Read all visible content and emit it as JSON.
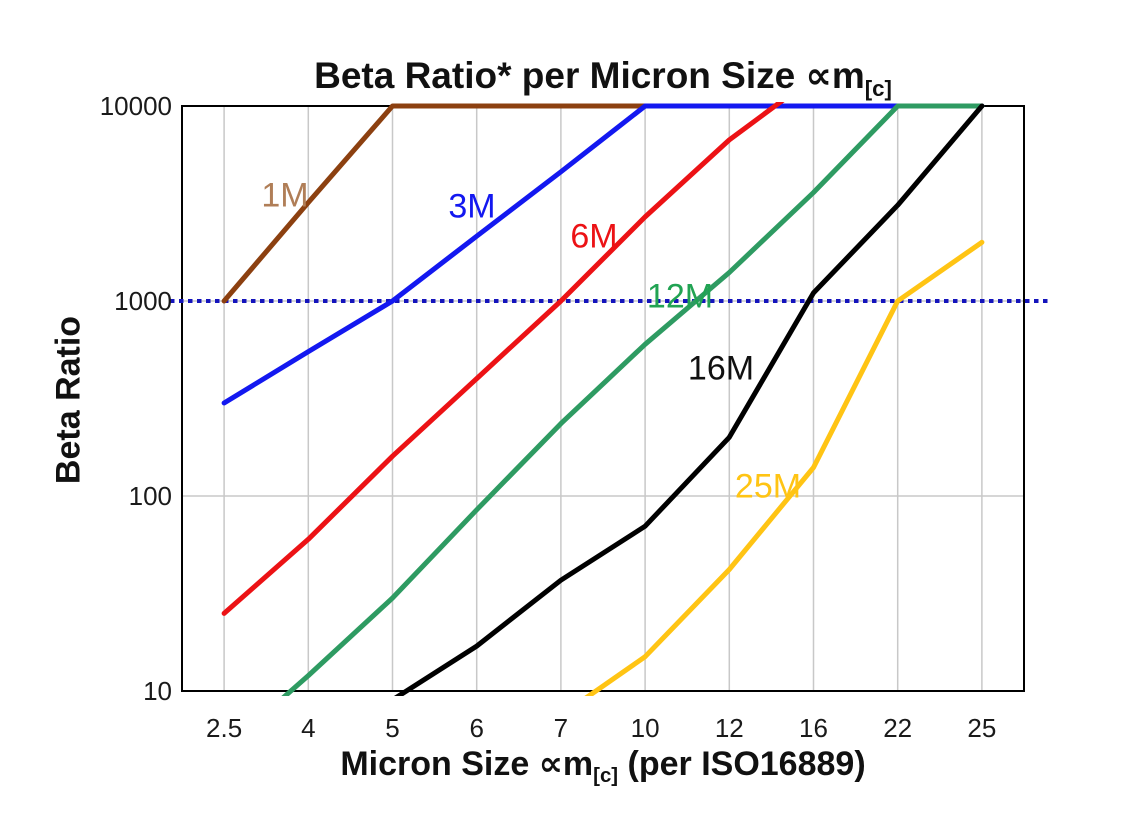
{
  "title": {
    "pre": "Beta Ratio* per Micron Size ",
    "sym": "∝m",
    "sub": "[c]"
  },
  "y_axis": {
    "title": "Beta Ratio",
    "tick_labels": [
      "10000",
      "1000",
      "100",
      "10"
    ]
  },
  "x_axis": {
    "title_pre": "Micron Size ",
    "title_sym": "∝m",
    "title_sub": "[c]",
    "title_post": " (per ISO16889)",
    "tick_labels": [
      "2.5",
      "4",
      "5",
      "6",
      "7",
      "10",
      "12",
      "16",
      "22",
      "25"
    ]
  },
  "colors": {
    "background": "#ffffff",
    "grid": "#c8c8c8",
    "axis_border": "#000000",
    "reference_line": "#1414bc",
    "text": "#111111"
  },
  "chart_data": {
    "type": "line",
    "title": "Beta Ratio* per Micron Size ∝m[c]",
    "xlabel": "Micron Size ∝m[c] (per ISO16889)",
    "ylabel": "Beta Ratio",
    "x_categories": [
      "2.5",
      "4",
      "5",
      "6",
      "7",
      "10",
      "12",
      "16",
      "22",
      "25"
    ],
    "y_scale": "log",
    "ylim": [
      10,
      10000
    ],
    "y_ticks": [
      10000,
      1000,
      100,
      10
    ],
    "grid": "on",
    "legend_position": "inline-labels",
    "reference_line": {
      "y": 1000,
      "style": "dotted",
      "color": "#1414bc"
    },
    "series": [
      {
        "name": "1M",
        "color": "#8c4010",
        "label_color": "#b07e57",
        "values": [
          1000,
          3200,
          10000,
          10000,
          10000,
          10000,
          10000,
          10000,
          10000,
          10000
        ],
        "label_xy": [
          285,
          196
        ]
      },
      {
        "name": "3M",
        "color": "#1318f0",
        "label_color": "#1318f0",
        "values": [
          300,
          550,
          1000,
          2150,
          4600,
          10000,
          10000,
          10000,
          10000,
          10000
        ],
        "label_xy": [
          472,
          207
        ]
      },
      {
        "name": "6M",
        "color": "#ec1215",
        "label_color": "#ec1215",
        "values": [
          25,
          60,
          160,
          400,
          1000,
          2700,
          6700,
          14000,
          null,
          null
        ],
        "label_xy": [
          594,
          237
        ]
      },
      {
        "name": "12M",
        "color": "#2e9b62",
        "label_color": "#21a353",
        "values": [
          5,
          12,
          30,
          85,
          235,
          600,
          1400,
          3600,
          10000,
          10000
        ],
        "label_xy": [
          680,
          297
        ]
      },
      {
        "name": "16M",
        "color": "#000000",
        "label_color": "#111111",
        "values": [
          null,
          null,
          9,
          17,
          37,
          70,
          200,
          1100,
          3100,
          10000
        ],
        "label_xy": [
          721,
          369
        ]
      },
      {
        "name": "25M",
        "color": "#ffc414",
        "label_color": "#ffc414",
        "values": [
          null,
          null,
          null,
          null,
          7.5,
          15,
          42,
          140,
          1000,
          2000
        ],
        "label_xy": [
          768,
          487
        ]
      }
    ]
  }
}
